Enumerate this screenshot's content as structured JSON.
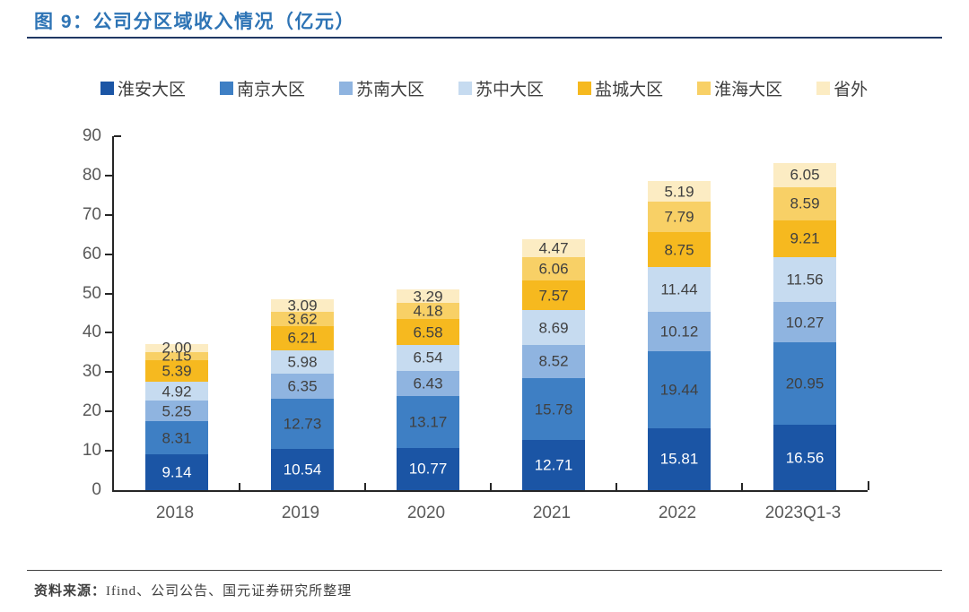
{
  "figure": {
    "title": "图 9：公司分区域收入情况（亿元）"
  },
  "source": {
    "label": "资料来源：",
    "text": "Ifind、公司公告、国元证券研究所整理"
  },
  "chart_data": {
    "type": "bar",
    "stacked": true,
    "title": "公司分区域收入情况（亿元）",
    "categories": [
      "2018",
      "2019",
      "2020",
      "2021",
      "2022",
      "2023Q1-3"
    ],
    "series": [
      {
        "name": "淮安大区",
        "color": "#1B55A5",
        "value_label_color": "#FFFFFF",
        "values": [
          9.14,
          10.54,
          10.77,
          12.71,
          15.81,
          16.56
        ]
      },
      {
        "name": "南京大区",
        "color": "#3E7FC4",
        "value_label_color": "#404040",
        "values": [
          8.31,
          12.73,
          13.17,
          15.78,
          19.44,
          20.95
        ]
      },
      {
        "name": "苏南大区",
        "color": "#8FB4E0",
        "value_label_color": "#404040",
        "values": [
          5.25,
          6.35,
          6.43,
          8.52,
          10.12,
          10.27
        ]
      },
      {
        "name": "苏中大区",
        "color": "#C6DBF0",
        "value_label_color": "#404040",
        "values": [
          4.92,
          5.98,
          6.54,
          8.69,
          11.44,
          11.56
        ]
      },
      {
        "name": "盐城大区",
        "color": "#F6B91F",
        "value_label_color": "#404040",
        "values": [
          5.39,
          6.21,
          6.58,
          7.57,
          8.75,
          9.21
        ]
      },
      {
        "name": "淮海大区",
        "color": "#F8D066",
        "value_label_color": "#404040",
        "values": [
          2.15,
          3.62,
          4.18,
          6.06,
          7.79,
          8.59
        ]
      },
      {
        "name": "省外",
        "color": "#FCECC3",
        "value_label_color": "#404040",
        "values": [
          2.0,
          3.09,
          3.29,
          4.47,
          5.19,
          6.05
        ]
      }
    ],
    "ylim": [
      0,
      90
    ],
    "ytick_step": 10,
    "grid": false,
    "legend_position": "top",
    "value_label_decimals": 2,
    "axis_color": "#262626",
    "tick_label_color": "#595959"
  }
}
